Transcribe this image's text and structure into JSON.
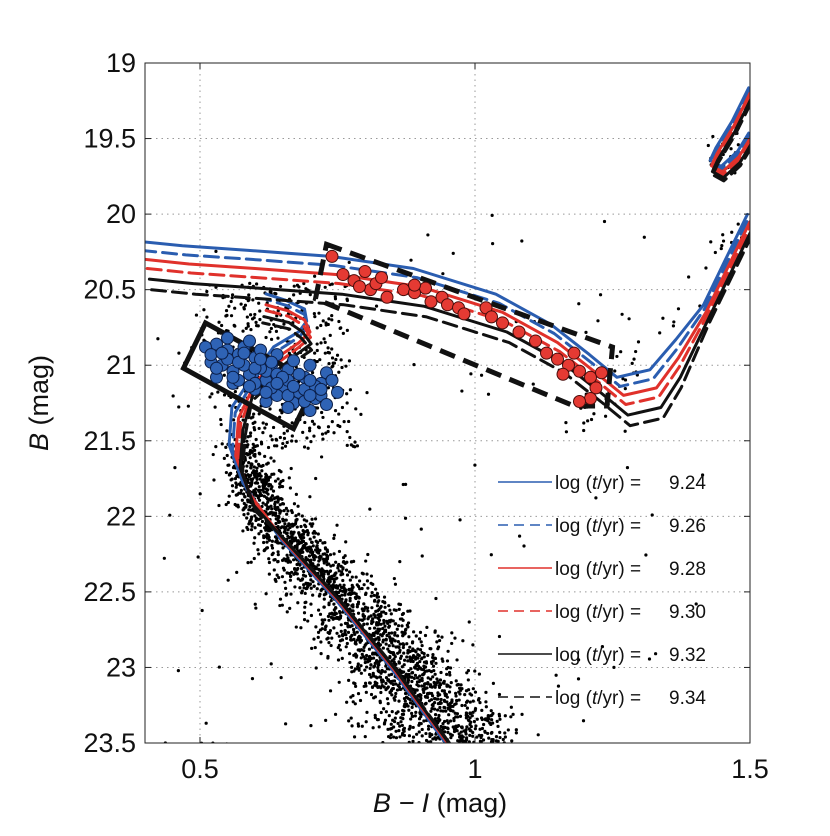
{
  "chart_data": {
    "type": "scatter",
    "title": "",
    "xlabel_italic": "B − I",
    "xlabel_unit": " (mag)",
    "ylabel_italic": "B",
    "ylabel_unit": " (mag)",
    "xlim": [
      0.4,
      1.5
    ],
    "ylim": [
      19,
      23.5
    ],
    "y_inverted": true,
    "grid": true,
    "x_ticks": [
      0.5,
      1,
      1.5
    ],
    "x_tick_labels": [
      "0.5",
      "1",
      "1.5"
    ],
    "y_ticks": [
      19,
      19.5,
      20,
      20.5,
      21,
      21.5,
      22,
      22.5,
      23,
      23.5
    ],
    "y_tick_labels": [
      "19",
      "19.5",
      "20",
      "20.5",
      "21",
      "21.5",
      "22",
      "22.5",
      "23",
      "23.5"
    ],
    "legend_position": "bottom-right",
    "legend_prefix": "log (",
    "legend_italic": "t",
    "legend_suffix": "/yr) =",
    "isochrones": [
      {
        "name": "log (t/yr) = 9.24",
        "log_age": "9.24",
        "color": "#2a5db0",
        "dash": false,
        "offset_x": -0.012,
        "offset_y": -0.12,
        "turnoff_width": 0.085
      },
      {
        "name": "log (t/yr) = 9.26",
        "log_age": "9.26",
        "color": "#2a5db0",
        "dash": true,
        "offset_x": -0.006,
        "offset_y": -0.06,
        "turnoff_width": 0.075
      },
      {
        "name": "log (t/yr) = 9.28",
        "log_age": "9.28",
        "color": "#e0312b",
        "dash": false,
        "offset_x": 0.0,
        "offset_y": 0.0,
        "turnoff_width": 0.065
      },
      {
        "name": "log (t/yr) = 9.30",
        "log_age": "9.30",
        "color": "#e0312b",
        "dash": true,
        "offset_x": 0.004,
        "offset_y": 0.06,
        "turnoff_width": 0.055
      },
      {
        "name": "log (t/yr) = 9.32",
        "log_age": "9.32",
        "color": "#111111",
        "dash": false,
        "offset_x": 0.008,
        "offset_y": 0.13,
        "turnoff_width": 0.045
      },
      {
        "name": "log (t/yr) = 9.34",
        "log_age": "9.34",
        "color": "#111111",
        "dash": true,
        "offset_x": 0.012,
        "offset_y": 0.2,
        "turnoff_width": 0.035
      }
    ],
    "isochrone_base": {
      "main_sequence": [
        [
          0.95,
          23.5
        ],
        [
          0.85,
          23.0
        ],
        [
          0.75,
          22.55
        ],
        [
          0.65,
          22.15
        ],
        [
          0.59,
          21.85
        ],
        [
          0.565,
          21.6
        ],
        [
          0.57,
          21.35
        ],
        [
          0.6,
          21.12
        ],
        [
          0.64,
          20.95
        ],
        [
          0.68,
          20.85
        ],
        [
          0.7,
          20.78
        ],
        [
          0.69,
          20.7
        ],
        [
          0.66,
          20.64
        ],
        [
          0.62,
          20.6
        ]
      ],
      "subgiant_branch": [
        [
          0.4,
          20.3
        ],
        [
          0.48,
          20.33
        ],
        [
          0.6,
          20.36
        ],
        [
          0.75,
          20.4
        ],
        [
          0.9,
          20.48
        ],
        [
          1.05,
          20.65
        ],
        [
          1.15,
          20.85
        ],
        [
          1.22,
          21.05
        ],
        [
          1.27,
          21.2
        ],
        [
          1.33,
          21.15
        ],
        [
          1.37,
          20.95
        ],
        [
          1.42,
          20.65
        ],
        [
          1.46,
          20.35
        ],
        [
          1.5,
          20.05
        ]
      ],
      "red_clump": [
        [
          1.5,
          19.2
        ],
        [
          1.47,
          19.42
        ],
        [
          1.44,
          19.6
        ],
        [
          1.43,
          19.68
        ],
        [
          1.45,
          19.72
        ],
        [
          1.48,
          19.62
        ],
        [
          1.5,
          19.5
        ]
      ]
    },
    "stars": {
      "main_sequence_count": 2300,
      "turnoff_count": 420,
      "field_count": 110,
      "red_clump_count": 26
    },
    "blue_turnoff_stars": [
      [
        0.53,
        20.86
      ],
      [
        0.55,
        20.9
      ],
      [
        0.57,
        20.93
      ],
      [
        0.6,
        20.95
      ],
      [
        0.63,
        21.0
      ],
      [
        0.66,
        21.03
      ],
      [
        0.69,
        21.08
      ],
      [
        0.72,
        21.12
      ],
      [
        0.52,
        20.98
      ],
      [
        0.54,
        21.0
      ],
      [
        0.56,
        21.04
      ],
      [
        0.59,
        21.06
      ],
      [
        0.62,
        21.1
      ],
      [
        0.65,
        21.14
      ],
      [
        0.68,
        21.18
      ],
      [
        0.71,
        21.22
      ],
      [
        0.53,
        21.08
      ],
      [
        0.56,
        21.12
      ],
      [
        0.6,
        21.16
      ],
      [
        0.64,
        21.2
      ],
      [
        0.67,
        21.25
      ],
      [
        0.7,
        21.3
      ],
      [
        0.51,
        20.88
      ],
      [
        0.58,
        20.88
      ],
      [
        0.61,
        20.9
      ],
      [
        0.64,
        20.93
      ],
      [
        0.67,
        20.97
      ],
      [
        0.7,
        21.0
      ],
      [
        0.73,
        21.05
      ],
      [
        0.55,
        20.82
      ],
      [
        0.59,
        20.84
      ],
      [
        0.62,
        21.04
      ],
      [
        0.66,
        21.1
      ],
      [
        0.69,
        21.16
      ],
      [
        0.72,
        21.2
      ],
      [
        0.58,
        21.0
      ],
      [
        0.61,
        21.02
      ],
      [
        0.64,
        21.06
      ],
      [
        0.57,
        21.1
      ],
      [
        0.6,
        21.12
      ],
      [
        0.63,
        21.15
      ],
      [
        0.66,
        21.2
      ],
      [
        0.69,
        21.24
      ],
      [
        0.52,
        20.93
      ],
      [
        0.55,
        20.96
      ],
      [
        0.68,
        21.06
      ],
      [
        0.71,
        21.14
      ],
      [
        0.63,
        20.98
      ],
      [
        0.74,
        21.1
      ],
      [
        0.75,
        21.18
      ],
      [
        0.73,
        21.26
      ],
      [
        0.66,
        21.28
      ],
      [
        0.62,
        21.24
      ],
      [
        0.54,
        20.92
      ],
      [
        0.57,
        20.98
      ],
      [
        0.6,
        21.02
      ],
      [
        0.65,
        21.08
      ],
      [
        0.7,
        21.1
      ],
      [
        0.58,
        20.92
      ],
      [
        0.61,
        20.96
      ],
      [
        0.64,
        21.12
      ],
      [
        0.67,
        21.14
      ],
      [
        0.7,
        21.2
      ],
      [
        0.56,
        21.08
      ],
      [
        0.59,
        21.14
      ],
      [
        0.62,
        21.18
      ],
      [
        0.53,
        21.02
      ],
      [
        0.72,
        21.16
      ]
    ],
    "red_subgiant_stars": [
      [
        0.74,
        20.28
      ],
      [
        0.76,
        20.4
      ],
      [
        0.78,
        20.44
      ],
      [
        0.8,
        20.38
      ],
      [
        0.81,
        20.5
      ],
      [
        0.82,
        20.46
      ],
      [
        0.83,
        20.42
      ],
      [
        0.87,
        20.5
      ],
      [
        0.89,
        20.52
      ],
      [
        0.91,
        20.49
      ],
      [
        0.92,
        20.58
      ],
      [
        0.94,
        20.55
      ],
      [
        0.95,
        20.6
      ],
      [
        0.97,
        20.62
      ],
      [
        0.98,
        20.66
      ],
      [
        1.02,
        20.62
      ],
      [
        1.03,
        20.68
      ],
      [
        1.05,
        20.72
      ],
      [
        1.08,
        20.78
      ],
      [
        1.11,
        20.84
      ],
      [
        1.13,
        20.92
      ],
      [
        1.15,
        20.96
      ],
      [
        1.17,
        21.0
      ],
      [
        1.19,
        21.04
      ],
      [
        1.21,
        21.08
      ],
      [
        1.22,
        21.15
      ],
      [
        1.23,
        21.05
      ],
      [
        1.18,
        20.92
      ],
      [
        1.21,
        21.22
      ],
      [
        1.19,
        21.24
      ],
      [
        0.84,
        20.55
      ],
      [
        0.89,
        20.47
      ],
      [
        1.16,
        21.06
      ],
      [
        0.79,
        20.48
      ]
    ],
    "selection_boxes": [
      {
        "name": "turnoff-box",
        "corners": [
          [
            0.51,
            20.72
          ],
          [
            0.71,
            21.12
          ],
          [
            0.67,
            21.42
          ],
          [
            0.47,
            21.02
          ]
        ],
        "dash": false
      },
      {
        "name": "subgiant-box",
        "corners": [
          [
            0.73,
            20.2
          ],
          [
            1.25,
            20.88
          ],
          [
            1.24,
            21.27
          ],
          [
            1.18,
            21.27
          ],
          [
            0.71,
            20.56
          ]
        ],
        "dash": true
      }
    ]
  }
}
